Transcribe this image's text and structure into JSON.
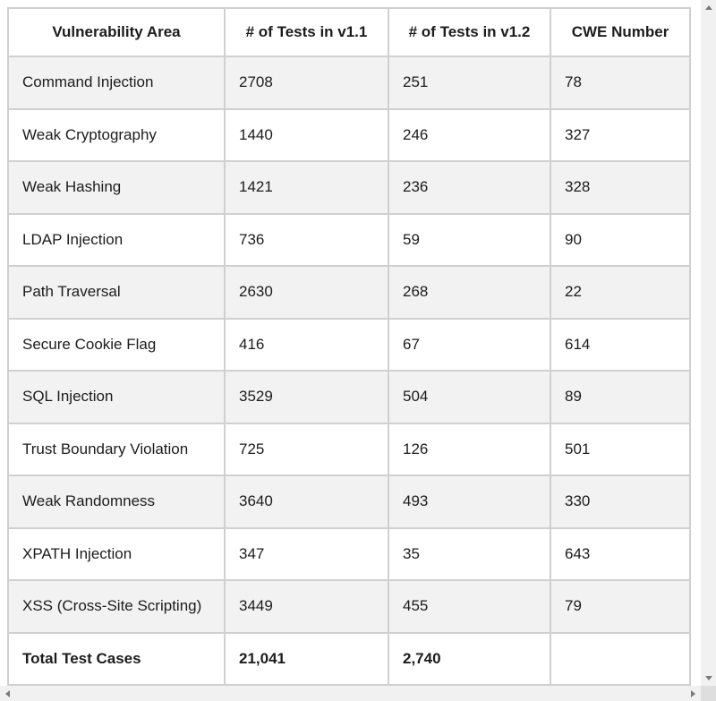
{
  "table": {
    "headers": [
      "Vulnerability Area",
      "# of Tests in v1.1",
      "# of Tests in v1.2",
      "CWE Number"
    ],
    "rows": [
      {
        "area": "Command Injection",
        "v11": "2708",
        "v12": "251",
        "cwe": "78"
      },
      {
        "area": "Weak Cryptography",
        "v11": "1440",
        "v12": "246",
        "cwe": "327"
      },
      {
        "area": "Weak Hashing",
        "v11": "1421",
        "v12": "236",
        "cwe": "328"
      },
      {
        "area": "LDAP Injection",
        "v11": "736",
        "v12": "59",
        "cwe": "90"
      },
      {
        "area": "Path Traversal",
        "v11": "2630",
        "v12": "268",
        "cwe": "22"
      },
      {
        "area": "Secure Cookie Flag",
        "v11": "416",
        "v12": "67",
        "cwe": "614"
      },
      {
        "area": "SQL Injection",
        "v11": "3529",
        "v12": "504",
        "cwe": "89"
      },
      {
        "area": "Trust Boundary Violation",
        "v11": "725",
        "v12": "126",
        "cwe": "501"
      },
      {
        "area": "Weak Randomness",
        "v11": "3640",
        "v12": "493",
        "cwe": "330"
      },
      {
        "area": "XPATH Injection",
        "v11": "347",
        "v12": "35",
        "cwe": "643"
      },
      {
        "area": "XSS (Cross-Site Scripting)",
        "v11": "3449",
        "v12": "455",
        "cwe": "79"
      }
    ],
    "total": {
      "area": "Total Test Cases",
      "v11": "21,041",
      "v12": "2,740",
      "cwe": ""
    }
  },
  "colors": {
    "row_stripe": "#f2f2f3",
    "cell_border": "#d0d0d0",
    "scrollbar_track": "#f1f1f1",
    "scrollbar_corner": "#dedede",
    "scrollbar_arrow": "#7a7a7a",
    "text": "#1c1c1c"
  },
  "icons": {
    "vertical_up": "scroll-up-icon",
    "vertical_down": "scroll-down-icon",
    "horizontal_left": "scroll-left-icon",
    "horizontal_right": "scroll-right-icon"
  }
}
